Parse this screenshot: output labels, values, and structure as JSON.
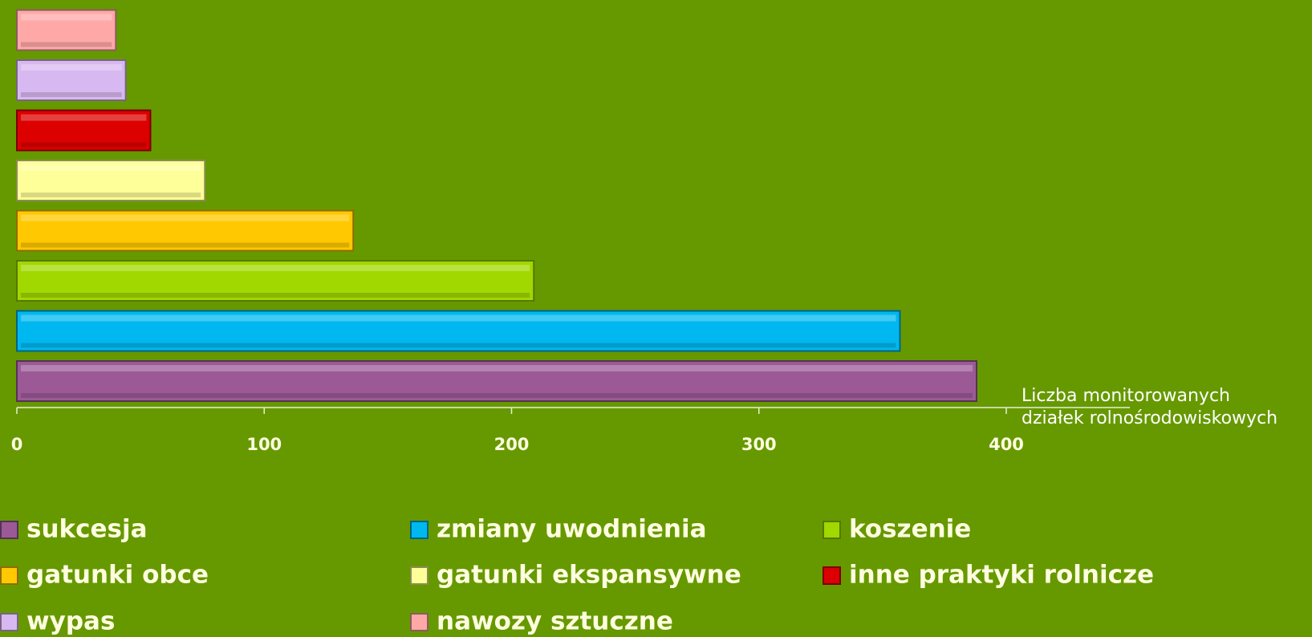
{
  "chart_data": {
    "type": "bar",
    "orientation": "horizontal",
    "x_label": [
      "Liczba  monitorowanych",
      "działek  rolnośrodowiskowych"
    ],
    "series": [
      {
        "name": "sukcesja",
        "color": "#9b5a96",
        "values": [
          388
        ]
      },
      {
        "name": "zmiany uwodnienia",
        "color": "#00b8f0",
        "values": [
          357
        ]
      },
      {
        "name": "koszenie",
        "color": "#a0d800",
        "values": [
          209
        ]
      },
      {
        "name": "gatunki obce",
        "color": "#ffc800",
        "values": [
          136
        ]
      },
      {
        "name": "gatunki ekspansywne",
        "color": "#ffff99",
        "values": [
          76
        ]
      },
      {
        "name": "inne praktyki rolnicze",
        "color": "#dd0000",
        "values": [
          54
        ]
      },
      {
        "name": "wypas",
        "color": "#d8b8f0",
        "values": [
          44
        ]
      },
      {
        "name": "nawozy sztuczne",
        "color": "#ffa8a8",
        "values": [
          40
        ]
      }
    ],
    "xlim": [
      0,
      450
    ],
    "xticks": [
      0,
      100,
      200,
      300,
      400
    ],
    "legend": "bottom"
  }
}
